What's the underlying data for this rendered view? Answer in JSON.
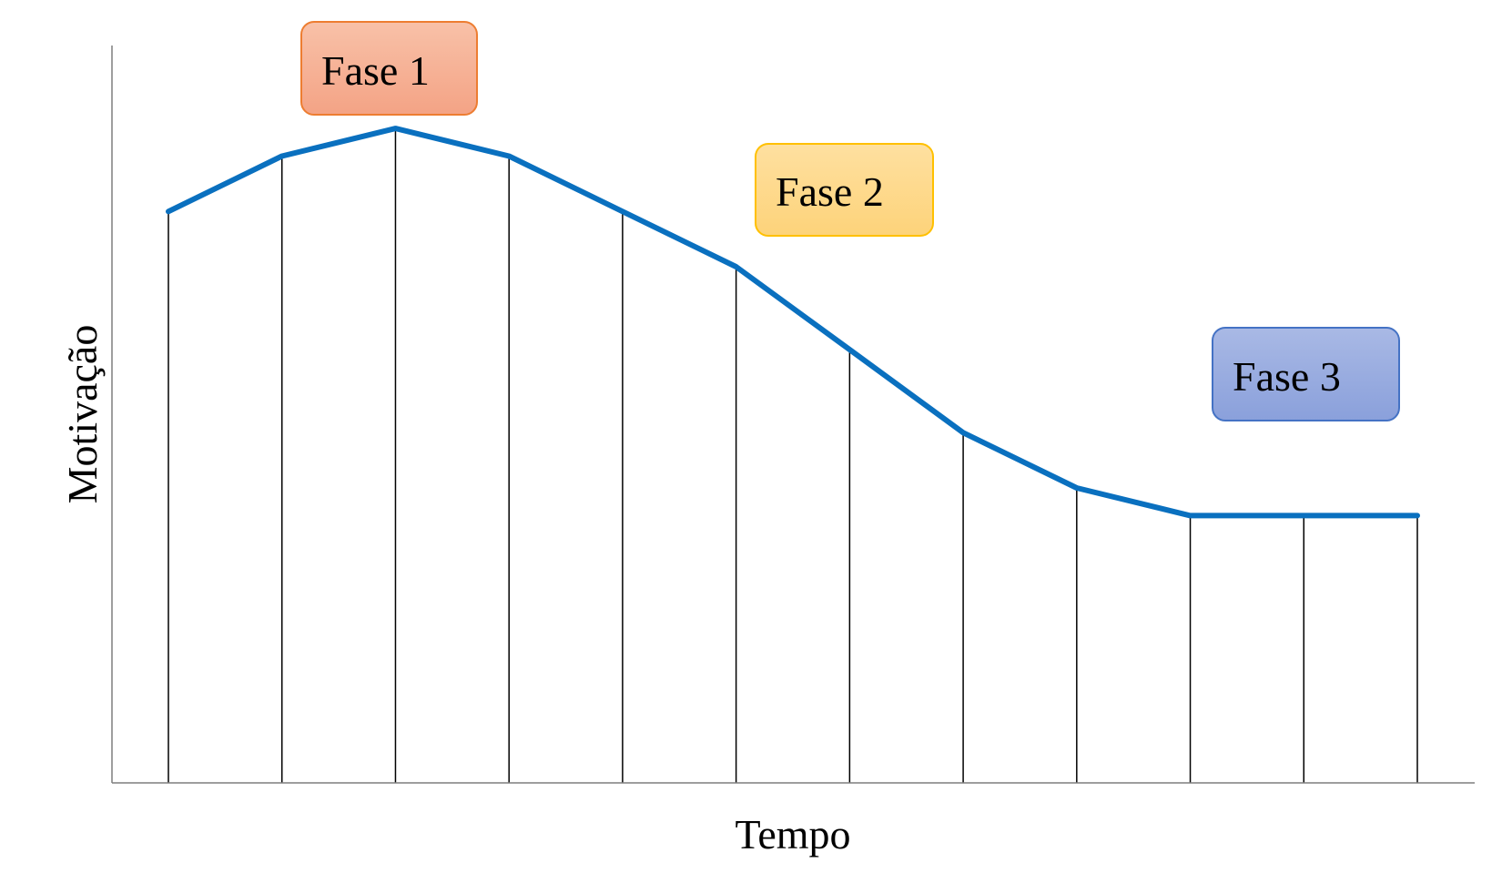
{
  "chart_data": {
    "type": "line",
    "title": "",
    "xlabel": "Tempo",
    "ylabel": "Motivação",
    "x": [
      1,
      2,
      3,
      4,
      5,
      6,
      7,
      8,
      9,
      10,
      11,
      12
    ],
    "series": [
      {
        "values": [
          6.2,
          6.8,
          7.1,
          6.8,
          6.2,
          5.6,
          4.7,
          3.8,
          3.2,
          2.9,
          2.9,
          2.9
        ]
      }
    ],
    "xlim": [
      0.5,
      12.5
    ],
    "ylim": [
      0,
      8
    ],
    "grid": false,
    "drop_lines": true,
    "line_color": "#0a70bf",
    "annotations": [
      {
        "text": "Fase 1",
        "near_x": 3,
        "fill": "#f5aa8c",
        "border": "#ed7d31"
      },
      {
        "text": "Fase 2",
        "near_x": 7,
        "fill": "#fdd886",
        "border": "#ffc000"
      },
      {
        "text": "Fase 3",
        "near_x": 11,
        "fill": "#92a7dd",
        "border": "#4472c4"
      }
    ]
  }
}
